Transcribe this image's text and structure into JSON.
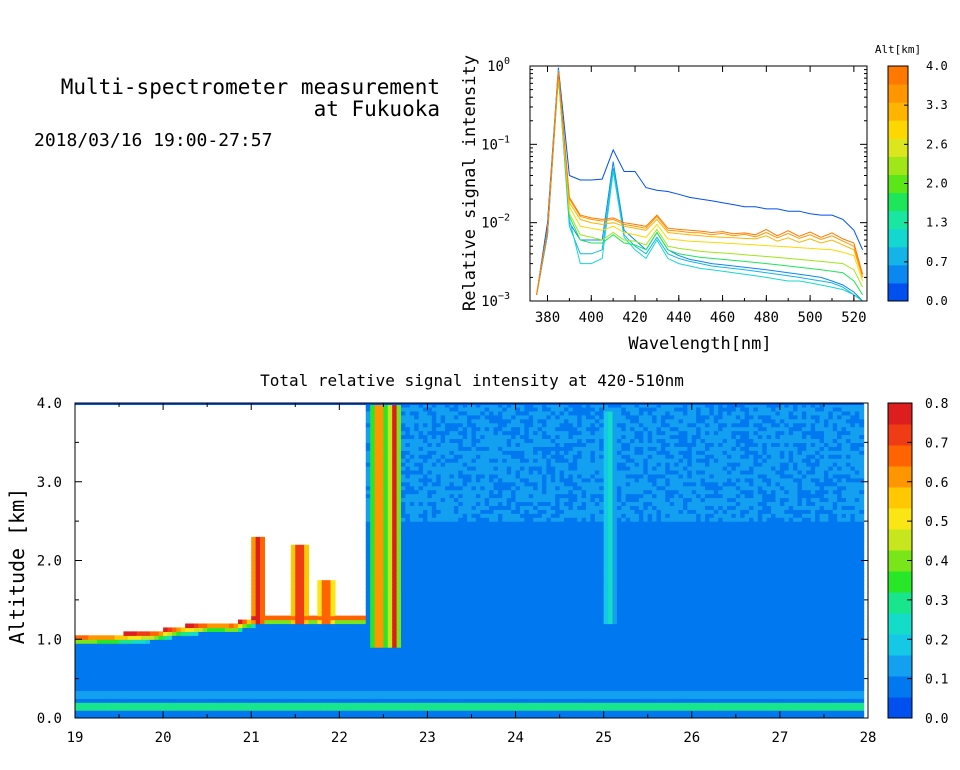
{
  "header": {
    "title_line1": "Multi-spectrometer measurement",
    "title_line2": "at Fukuoka",
    "datetime": "2018/03/16 19:00-27:57"
  },
  "chart_data": [
    {
      "type": "line",
      "xlabel": "Wavelength[nm]",
      "ylabel": "Relative signal intensity",
      "x_ticks": [
        380,
        400,
        420,
        440,
        460,
        480,
        500,
        520
      ],
      "xlim": [
        372,
        526
      ],
      "ylim": [
        0.001,
        1
      ],
      "yscale": "log",
      "y_ticks": [
        {
          "value": 1,
          "base": "10",
          "exp": "0"
        },
        {
          "value": 0.1,
          "base": "10",
          "exp": "−1"
        },
        {
          "value": 0.01,
          "base": "10",
          "exp": "−2"
        },
        {
          "value": 0.001,
          "base": "10",
          "exp": "−3"
        }
      ],
      "colorbar": {
        "title": "Alt[km]",
        "ticks": [
          "0.0",
          "0.7",
          "1.3",
          "2.0",
          "2.6",
          "3.3",
          "4.0"
        ],
        "colors": [
          "#0050f0",
          "#0a88f0",
          "#14b4e8",
          "#14d8d0",
          "#19e6a0",
          "#1ee65a",
          "#5ae619",
          "#a0e619",
          "#dce61e",
          "#ffd700",
          "#ffb400",
          "#ff9600",
          "#ff7800"
        ]
      },
      "x": [
        375,
        380,
        385,
        390,
        395,
        400,
        405,
        410,
        415,
        420,
        425,
        430,
        435,
        440,
        445,
        450,
        455,
        460,
        465,
        470,
        475,
        480,
        485,
        490,
        495,
        500,
        505,
        510,
        515,
        520,
        524
      ],
      "series": [
        {
          "color": "#0050f0",
          "values": [
            0.0012,
            0.01,
            0.95,
            0.04,
            0.035,
            0.035,
            0.036,
            0.085,
            0.045,
            0.045,
            0.028,
            0.026,
            0.025,
            0.023,
            0.021,
            0.02,
            0.019,
            0.018,
            0.017,
            0.016,
            0.016,
            0.015,
            0.015,
            0.014,
            0.014,
            0.013,
            0.0125,
            0.0125,
            0.011,
            0.008,
            0.0045
          ]
        },
        {
          "color": "#0a88f0",
          "values": [
            0.0012,
            0.007,
            0.85,
            0.01,
            0.006,
            0.006,
            0.006,
            0.06,
            0.008,
            0.006,
            0.0045,
            0.0075,
            0.0045,
            0.0038,
            0.0034,
            0.0032,
            0.003,
            0.0029,
            0.0028,
            0.0027,
            0.0026,
            0.0025,
            0.0024,
            0.0023,
            0.0022,
            0.0021,
            0.002,
            0.0018,
            0.0016,
            0.0013,
            0.001
          ]
        },
        {
          "color": "#14b4e8",
          "values": [
            0.0012,
            0.007,
            0.8,
            0.009,
            0.004,
            0.004,
            0.0045,
            0.05,
            0.007,
            0.005,
            0.004,
            0.0065,
            0.004,
            0.0035,
            0.0032,
            0.003,
            0.0028,
            0.0027,
            0.0026,
            0.0025,
            0.0024,
            0.0023,
            0.0022,
            0.0021,
            0.002,
            0.0019,
            0.0018,
            0.0017,
            0.0015,
            0.0012,
            0.001
          ]
        },
        {
          "color": "#14d8d0",
          "values": [
            0.0012,
            0.008,
            0.9,
            0.011,
            0.003,
            0.003,
            0.0035,
            0.045,
            0.0065,
            0.0045,
            0.0035,
            0.006,
            0.0035,
            0.003,
            0.0028,
            0.0026,
            0.0025,
            0.0024,
            0.0023,
            0.0022,
            0.0021,
            0.002,
            0.0019,
            0.0018,
            0.0018,
            0.0017,
            0.0016,
            0.0015,
            0.0014,
            0.0012,
            0.001
          ]
        },
        {
          "color": "#1ee65a",
          "values": [
            0.0012,
            0.008,
            0.7,
            0.012,
            0.006,
            0.0055,
            0.0055,
            0.007,
            0.0055,
            0.0052,
            0.0045,
            0.0075,
            0.0045,
            0.004,
            0.0038,
            0.0036,
            0.0035,
            0.0034,
            0.0033,
            0.0032,
            0.0031,
            0.003,
            0.0029,
            0.0028,
            0.0027,
            0.0026,
            0.0025,
            0.0024,
            0.0023,
            0.0018,
            0.0012
          ]
        },
        {
          "color": "#a0e619",
          "values": [
            0.0012,
            0.008,
            0.75,
            0.013,
            0.007,
            0.0065,
            0.006,
            0.0075,
            0.006,
            0.0058,
            0.0052,
            0.0082,
            0.005,
            0.0047,
            0.0045,
            0.0043,
            0.0042,
            0.0041,
            0.004,
            0.0039,
            0.0038,
            0.0037,
            0.0036,
            0.0035,
            0.0034,
            0.0033,
            0.0032,
            0.0031,
            0.003,
            0.0025,
            0.0015
          ]
        },
        {
          "color": "#ffd700",
          "values": [
            0.0012,
            0.008,
            0.8,
            0.016,
            0.009,
            0.0085,
            0.008,
            0.009,
            0.0075,
            0.007,
            0.0065,
            0.0095,
            0.0062,
            0.006,
            0.0058,
            0.0057,
            0.0056,
            0.0055,
            0.0054,
            0.0053,
            0.0052,
            0.0051,
            0.005,
            0.0049,
            0.0048,
            0.0047,
            0.0046,
            0.0045,
            0.0042,
            0.0038,
            0.0018
          ]
        },
        {
          "color": "#ffb400",
          "values": [
            0.0012,
            0.008,
            0.85,
            0.018,
            0.011,
            0.01,
            0.0095,
            0.01,
            0.009,
            0.0085,
            0.008,
            0.011,
            0.0075,
            0.0072,
            0.007,
            0.0068,
            0.0066,
            0.0065,
            0.0064,
            0.0063,
            0.0062,
            0.0068,
            0.0058,
            0.0064,
            0.0056,
            0.0062,
            0.0055,
            0.006,
            0.0052,
            0.0045,
            0.002
          ]
        },
        {
          "color": "#ff9600",
          "values": [
            0.0012,
            0.008,
            0.85,
            0.02,
            0.012,
            0.011,
            0.0105,
            0.011,
            0.0095,
            0.009,
            0.0085,
            0.012,
            0.008,
            0.0078,
            0.0075,
            0.0074,
            0.007,
            0.0073,
            0.0068,
            0.0071,
            0.0066,
            0.0075,
            0.0064,
            0.0073,
            0.0063,
            0.007,
            0.0061,
            0.0068,
            0.0058,
            0.005,
            0.002
          ]
        },
        {
          "color": "#ff7800",
          "values": [
            0.0012,
            0.008,
            0.85,
            0.021,
            0.0125,
            0.0115,
            0.011,
            0.0115,
            0.01,
            0.0095,
            0.009,
            0.0125,
            0.0085,
            0.0082,
            0.008,
            0.0078,
            0.0075,
            0.0077,
            0.0072,
            0.0074,
            0.007,
            0.0082,
            0.0068,
            0.0079,
            0.0067,
            0.0076,
            0.0065,
            0.0074,
            0.0062,
            0.0055,
            0.0022
          ]
        }
      ]
    },
    {
      "type": "heatmap",
      "title": "Total relative signal intensity at 420-510nm",
      "xlabel": "",
      "ylabel": "Altitude [km]",
      "x_ticks": [
        "19",
        "20",
        "21",
        "22",
        "23",
        "24",
        "25",
        "26",
        "27",
        "28"
      ],
      "y_ticks": [
        "0.0",
        "1.0",
        "2.0",
        "3.0",
        "4.0"
      ],
      "xlim": [
        19,
        28
      ],
      "ylim": [
        0,
        4
      ],
      "data_range_x": [
        19,
        27.95
      ],
      "colorbar": {
        "ticks": [
          "0.0",
          "0.1",
          "0.2",
          "0.3",
          "0.4",
          "0.5",
          "0.6",
          "0.7",
          "0.8"
        ],
        "range": [
          0,
          0.8
        ],
        "colors": [
          "#0050f0",
          "#0078f0",
          "#14a0f0",
          "#14c8e6",
          "#14dcc8",
          "#19e68c",
          "#28e628",
          "#78e619",
          "#c8e61e",
          "#fae614",
          "#ffc800",
          "#ff9600",
          "#ff6400",
          "#f03c14",
          "#dc1e1e"
        ]
      },
      "base_value": 0.07,
      "low_bands": [
        {
          "alt": 0.15,
          "value": 0.42
        },
        {
          "alt": 0.3,
          "value": 0.22
        }
      ],
      "cloud_base": [
        [
          19.0,
          1.05
        ],
        [
          19.5,
          1.07
        ],
        [
          19.9,
          1.1
        ],
        [
          20.2,
          1.17
        ],
        [
          20.6,
          1.22
        ],
        [
          20.8,
          1.2
        ],
        [
          21.0,
          1.28
        ],
        [
          21.1,
          1.3
        ],
        [
          21.9,
          1.3
        ],
        [
          22.3,
          1.3
        ]
      ],
      "plumes": [
        {
          "x": 22.45,
          "width": 0.05,
          "value": 0.78
        },
        {
          "x": 22.62,
          "width": 0.04,
          "value": 0.8
        },
        {
          "x": 25.07,
          "width": 0.04,
          "value": 0.26,
          "top": 3.9,
          "bottom": 1.2
        }
      ],
      "cloud_spikes": [
        {
          "x": 21.08,
          "top": 2.3,
          "value": 0.78
        },
        {
          "x": 21.55,
          "top": 2.2,
          "value": 0.78
        },
        {
          "x": 21.85,
          "top": 1.75,
          "value": 0.72
        }
      ]
    }
  ]
}
